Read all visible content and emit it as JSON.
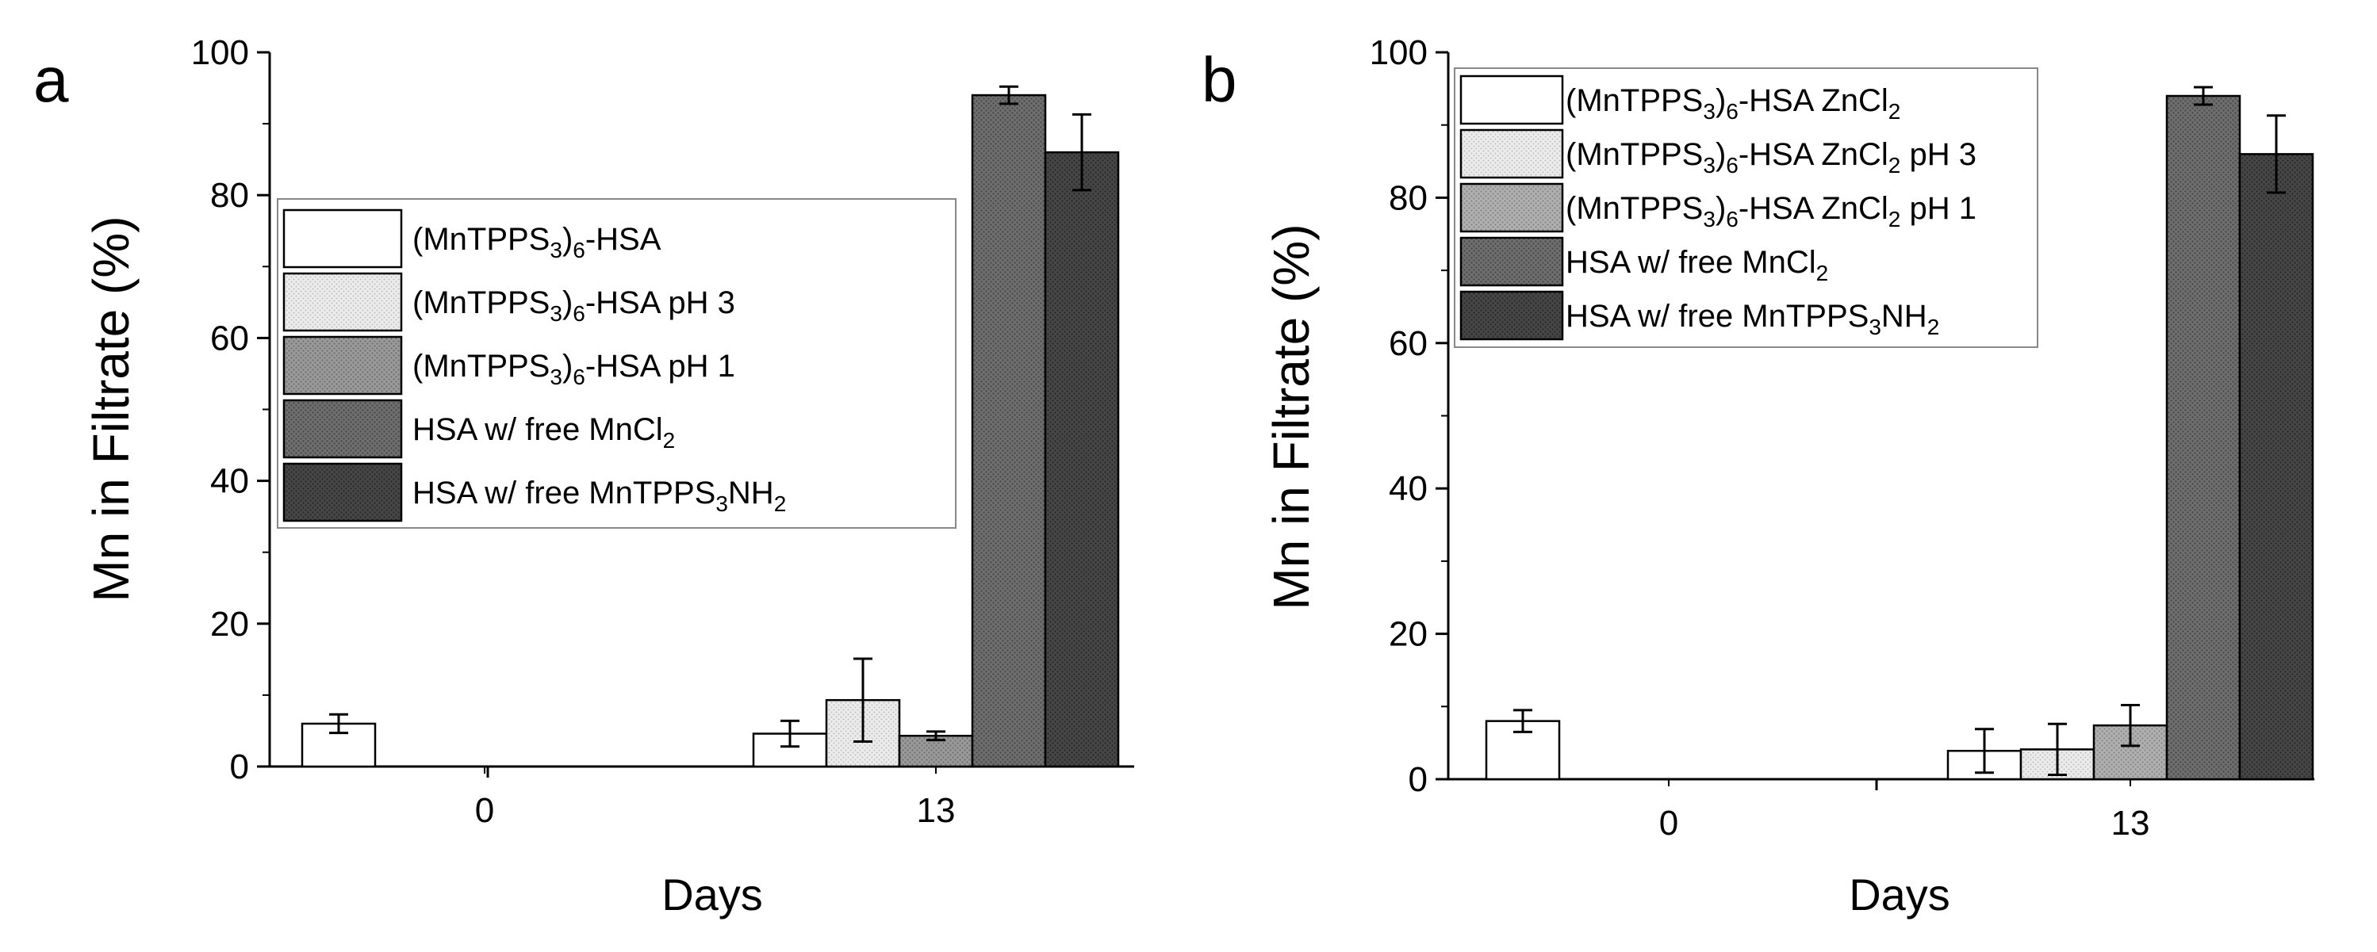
{
  "chart_data": [
    {
      "panel_label": "a",
      "type": "bar",
      "title": "",
      "xlabel": "Days",
      "ylabel": "Mn in Filtrate (%)",
      "ylim": [
        0,
        100
      ],
      "yticks": [
        "0",
        "20",
        "40",
        "60",
        "80",
        "100"
      ],
      "categories": [
        "0",
        "13"
      ],
      "legend_position": "center-left",
      "series": [
        {
          "name": "(MnTPPS3)6-HSA",
          "legend_parts": [
            [
              "(MnTPPS",
              ""
            ],
            [
              "3",
              "sub"
            ],
            [
              ")",
              ""
            ],
            [
              "6",
              "sub"
            ],
            [
              "-HSA",
              ""
            ]
          ],
          "fill": "#ffffff",
          "values": [
            6,
            4.6
          ],
          "errors": [
            1.3,
            1.8
          ]
        },
        {
          "name": "(MnTPPS3)6-HSA pH 3",
          "legend_parts": [
            [
              "(MnTPPS",
              ""
            ],
            [
              "3",
              "sub"
            ],
            [
              ")",
              ""
            ],
            [
              "6",
              "sub"
            ],
            [
              "-HSA pH 3",
              ""
            ]
          ],
          "fill": "#e6e6e6",
          "values": [
            null,
            9.3
          ],
          "errors": [
            null,
            5.8
          ]
        },
        {
          "name": "(MnTPPS3)6-HSA pH 1",
          "legend_parts": [
            [
              "(MnTPPS",
              ""
            ],
            [
              "3",
              "sub"
            ],
            [
              ")",
              ""
            ],
            [
              "6",
              "sub"
            ],
            [
              "-HSA pH 1",
              ""
            ]
          ],
          "fill": "#8f8f8f",
          "values": [
            null,
            4.3
          ],
          "errors": [
            null,
            0.6
          ]
        },
        {
          "name": "HSA w/ free MnCl2",
          "legend_parts": [
            [
              "HSA w/ free MnCl",
              ""
            ],
            [
              "2",
              "sub"
            ]
          ],
          "fill": "#6a6a6a",
          "values": [
            null,
            94
          ],
          "errors": [
            null,
            1.2
          ]
        },
        {
          "name": "HSA w/ free MnTPPS3NH2",
          "legend_parts": [
            [
              "HSA w/ free MnTPPS",
              ""
            ],
            [
              "3",
              "sub"
            ],
            [
              "NH",
              ""
            ],
            [
              "2",
              "sub"
            ]
          ],
          "fill": "#3e3e3e",
          "values": [
            null,
            86
          ],
          "errors": [
            null,
            5.3
          ]
        }
      ]
    },
    {
      "panel_label": "b",
      "type": "bar",
      "title": "",
      "xlabel": "Days",
      "ylabel": "Mn in Filtrate (%)",
      "ylim": [
        0,
        100
      ],
      "yticks": [
        "0",
        "20",
        "40",
        "60",
        "80",
        "100"
      ],
      "categories": [
        "0",
        "13"
      ],
      "legend_position": "top-left",
      "series": [
        {
          "name": "(MnTPPS3)6-HSA ZnCl2",
          "legend_parts": [
            [
              "(MnTPPS",
              ""
            ],
            [
              "3",
              "sub"
            ],
            [
              ")",
              ""
            ],
            [
              "6",
              "sub"
            ],
            [
              "-HSA ZnCl",
              ""
            ],
            [
              "2",
              "sub"
            ]
          ],
          "fill": "#ffffff",
          "values": [
            8,
            3.9
          ],
          "errors": [
            1.5,
            3.0
          ]
        },
        {
          "name": "(MnTPPS3)6-HSA ZnCl2 pH 3",
          "legend_parts": [
            [
              "(MnTPPS",
              ""
            ],
            [
              "3",
              "sub"
            ],
            [
              ")",
              ""
            ],
            [
              "6",
              "sub"
            ],
            [
              "-HSA ZnCl",
              ""
            ],
            [
              "2",
              "sub"
            ],
            [
              " pH 3",
              ""
            ]
          ],
          "fill": "#e6e6e6",
          "values": [
            null,
            4.1
          ],
          "errors": [
            null,
            3.5
          ]
        },
        {
          "name": "(MnTPPS3)6-HSA ZnCl2 pH 1",
          "legend_parts": [
            [
              "(MnTPPS",
              ""
            ],
            [
              "3",
              "sub"
            ],
            [
              ")",
              ""
            ],
            [
              "6",
              "sub"
            ],
            [
              "-HSA ZnCl",
              ""
            ],
            [
              "2",
              "sub"
            ],
            [
              " pH 1",
              ""
            ]
          ],
          "fill": "#a8a8a8",
          "values": [
            null,
            7.4
          ],
          "errors": [
            null,
            2.8
          ]
        },
        {
          "name": "HSA w/ free MnCl2",
          "legend_parts": [
            [
              "HSA w/ free MnCl",
              ""
            ],
            [
              "2",
              "sub"
            ]
          ],
          "fill": "#6a6a6a",
          "values": [
            null,
            94
          ],
          "errors": [
            null,
            1.2
          ]
        },
        {
          "name": "HSA w/ free MnTPPS3NH2",
          "legend_parts": [
            [
              "HSA w/ free MnTPPS",
              ""
            ],
            [
              "3",
              "sub"
            ],
            [
              "NH",
              ""
            ],
            [
              "2",
              "sub"
            ]
          ],
          "fill": "#3e3e3e",
          "values": [
            null,
            86
          ],
          "errors": [
            null,
            5.3
          ]
        }
      ]
    }
  ]
}
